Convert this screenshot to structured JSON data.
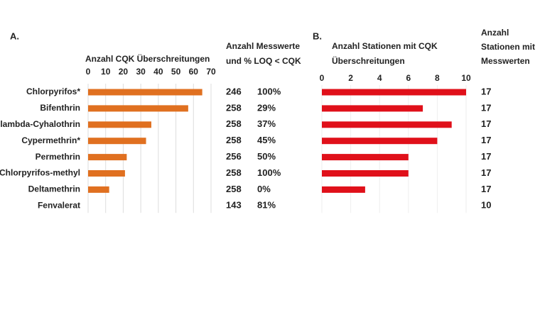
{
  "chart_data": [
    {
      "type": "bar",
      "label": "A.",
      "xlabel": [
        "Anzahl CQK Überschreitungen"
      ],
      "categories": [
        "Chlorpyrifos*",
        "Bifenthrin",
        "lambda-Cyhalothrin",
        "Cypermethrin*",
        "Permethrin",
        "Chlorpyrifos-methyl",
        "Deltamethrin",
        "Fenvalerat"
      ],
      "values": [
        65,
        57,
        36,
        33,
        22,
        21,
        12,
        0
      ],
      "color": "#e07020",
      "xlim": [
        0,
        70
      ],
      "xticks": [
        0,
        10,
        20,
        30,
        40,
        50,
        60,
        70
      ],
      "grid": true,
      "column_header": [
        "Anzahl Messwerte",
        "und % LOQ < CQK"
      ],
      "columns": [
        {
          "values": [
            246,
            258,
            258,
            258,
            256,
            258,
            258,
            143
          ]
        },
        {
          "values": [
            100,
            29,
            37,
            45,
            50,
            100,
            0,
            81
          ],
          "value_labels": [
            "100%",
            "29%",
            "37%",
            "45%",
            "50%",
            "100%",
            "0%",
            "81%"
          ]
        }
      ]
    },
    {
      "type": "bar",
      "label": "B.",
      "xlabel": [
        "Anzahl Stationen mit CQK",
        "Überschreitungen"
      ],
      "values": [
        10,
        7,
        9,
        8,
        6,
        6,
        3,
        0
      ],
      "color": "#e0101a",
      "xlim": [
        0,
        10
      ],
      "xticks": [
        0,
        2,
        4,
        6,
        8,
        10
      ],
      "grid": true,
      "column_header": [
        "Anzahl",
        "Stationen mit",
        "Messwerten"
      ],
      "columns": [
        {
          "values": [
            17,
            17,
            17,
            17,
            17,
            17,
            17,
            10
          ]
        }
      ]
    }
  ]
}
